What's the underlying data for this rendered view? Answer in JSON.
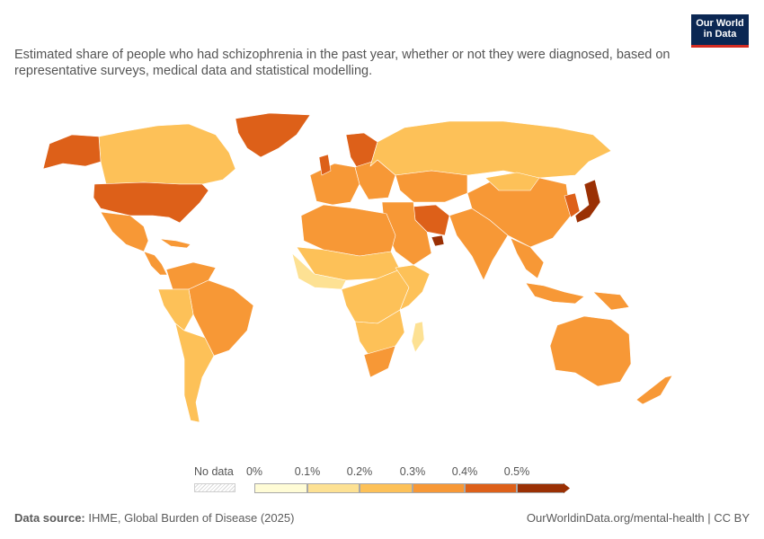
{
  "subtitle": "Estimated share of people who had schizophrenia in the past year, whether or not they were diagnosed, based on representative surveys, medical data and statistical modelling.",
  "logo": {
    "line1": "Our World",
    "line2": "in Data"
  },
  "legend": {
    "no_data_label": "No data",
    "ticks": [
      "0%",
      "0.1%",
      "0.2%",
      "0.3%",
      "0.4%",
      "0.5%"
    ],
    "colors": [
      "#fffcd6",
      "#fde193",
      "#fdc158",
      "#f79836",
      "#dd6019",
      "#9a3004"
    ]
  },
  "footer": {
    "source_label": "Data source:",
    "source_text": "IHME, Global Burden of Disease (2025)",
    "url_text": "OurWorldinData.org/mental-health | CC BY"
  },
  "chart_data": {
    "type": "map",
    "title": "",
    "unit": "%",
    "bins": [
      0,
      0.1,
      0.2,
      0.3,
      0.4,
      0.5
    ],
    "regions": [
      {
        "name": "Canada",
        "bin": 2
      },
      {
        "name": "United States",
        "bin": 4
      },
      {
        "name": "Alaska",
        "bin": 4
      },
      {
        "name": "Greenland",
        "bin": 4
      },
      {
        "name": "Mexico",
        "bin": 3
      },
      {
        "name": "Central America",
        "bin": 3
      },
      {
        "name": "Caribbean",
        "bin": 3
      },
      {
        "name": "South America North",
        "bin": 3
      },
      {
        "name": "Brazil",
        "bin": 3
      },
      {
        "name": "Andean South America",
        "bin": 2
      },
      {
        "name": "Southern Cone",
        "bin": 2
      },
      {
        "name": "Western Europe",
        "bin": 3
      },
      {
        "name": "United Kingdom",
        "bin": 4
      },
      {
        "name": "Scandinavia",
        "bin": 4
      },
      {
        "name": "Eastern Europe",
        "bin": 3
      },
      {
        "name": "Russia",
        "bin": 2
      },
      {
        "name": "Central Asia",
        "bin": 3
      },
      {
        "name": "Iran",
        "bin": 4
      },
      {
        "name": "Middle East",
        "bin": 3
      },
      {
        "name": "UAE",
        "bin": 5
      },
      {
        "name": "South Asia",
        "bin": 3
      },
      {
        "name": "China",
        "bin": 3
      },
      {
        "name": "Mongolia",
        "bin": 2
      },
      {
        "name": "Korea",
        "bin": 4
      },
      {
        "name": "Japan",
        "bin": 5
      },
      {
        "name": "Southeast Asia",
        "bin": 3
      },
      {
        "name": "Indonesia",
        "bin": 3
      },
      {
        "name": "Papua New Guinea",
        "bin": 3
      },
      {
        "name": "Australia",
        "bin": 3
      },
      {
        "name": "New Zealand",
        "bin": 3
      },
      {
        "name": "North Africa",
        "bin": 3
      },
      {
        "name": "Sahel",
        "bin": 2
      },
      {
        "name": "West Africa",
        "bin": 1
      },
      {
        "name": "Central Africa",
        "bin": 2
      },
      {
        "name": "East Africa",
        "bin": 2
      },
      {
        "name": "Southern Africa",
        "bin": 2
      },
      {
        "name": "South Africa",
        "bin": 3
      },
      {
        "name": "Madagascar",
        "bin": 1
      }
    ]
  }
}
